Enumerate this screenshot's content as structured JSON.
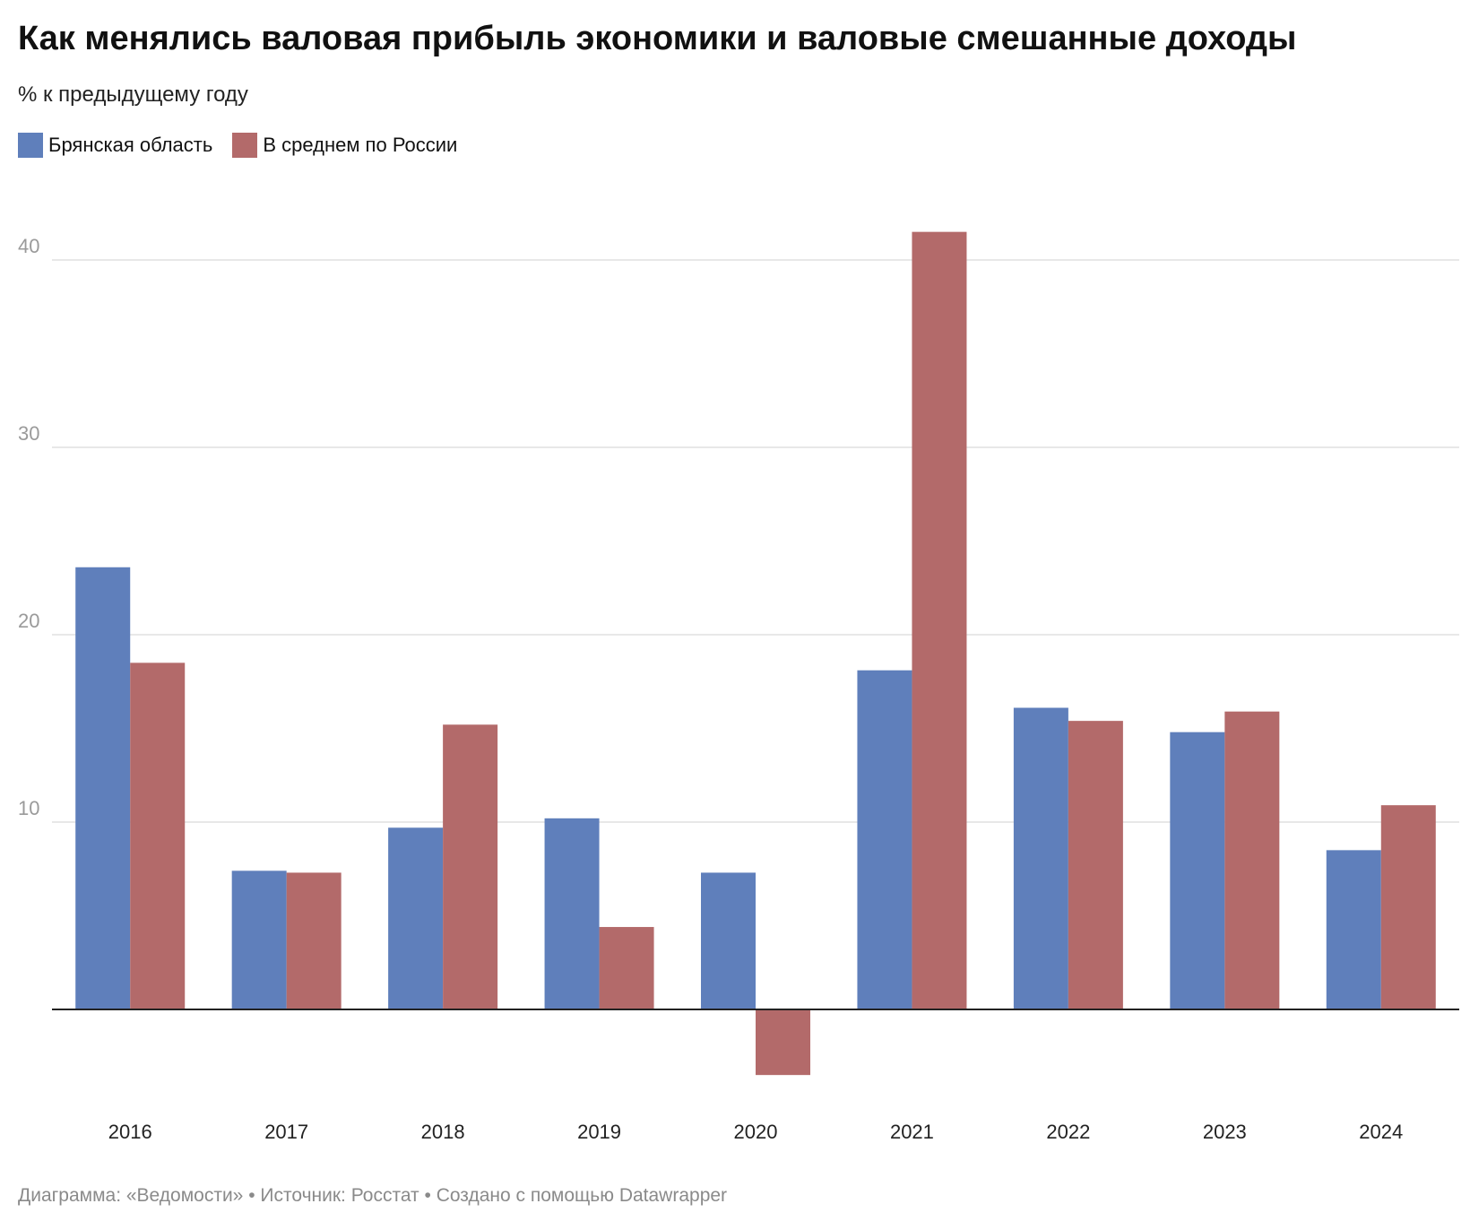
{
  "chart_data": {
    "type": "bar",
    "title": "Как менялись валовая прибыль экономики и валовые смешанные доходы",
    "subtitle": "% к предыдущему году",
    "categories": [
      "2016",
      "2017",
      "2018",
      "2019",
      "2020",
      "2021",
      "2022",
      "2023",
      "2024"
    ],
    "series": [
      {
        "name": "Брянская область",
        "color": "#5f7fbb",
        "values": [
          23.6,
          7.4,
          9.7,
          10.2,
          7.3,
          18.1,
          16.1,
          14.8,
          8.5
        ]
      },
      {
        "name": "В среднем по России",
        "color": "#b36a6a",
        "values": [
          18.5,
          7.3,
          15.2,
          4.4,
          -3.5,
          41.5,
          15.4,
          15.9,
          10.9
        ]
      }
    ],
    "yticks": [
      10,
      20,
      30,
      40
    ],
    "ylim": [
      -5,
      44
    ],
    "grid": true,
    "legend_position": "top-left"
  },
  "footer": "Диаграмма: «Ведомости» • Источник: Росстат • Создано с помощью Datawrapper"
}
